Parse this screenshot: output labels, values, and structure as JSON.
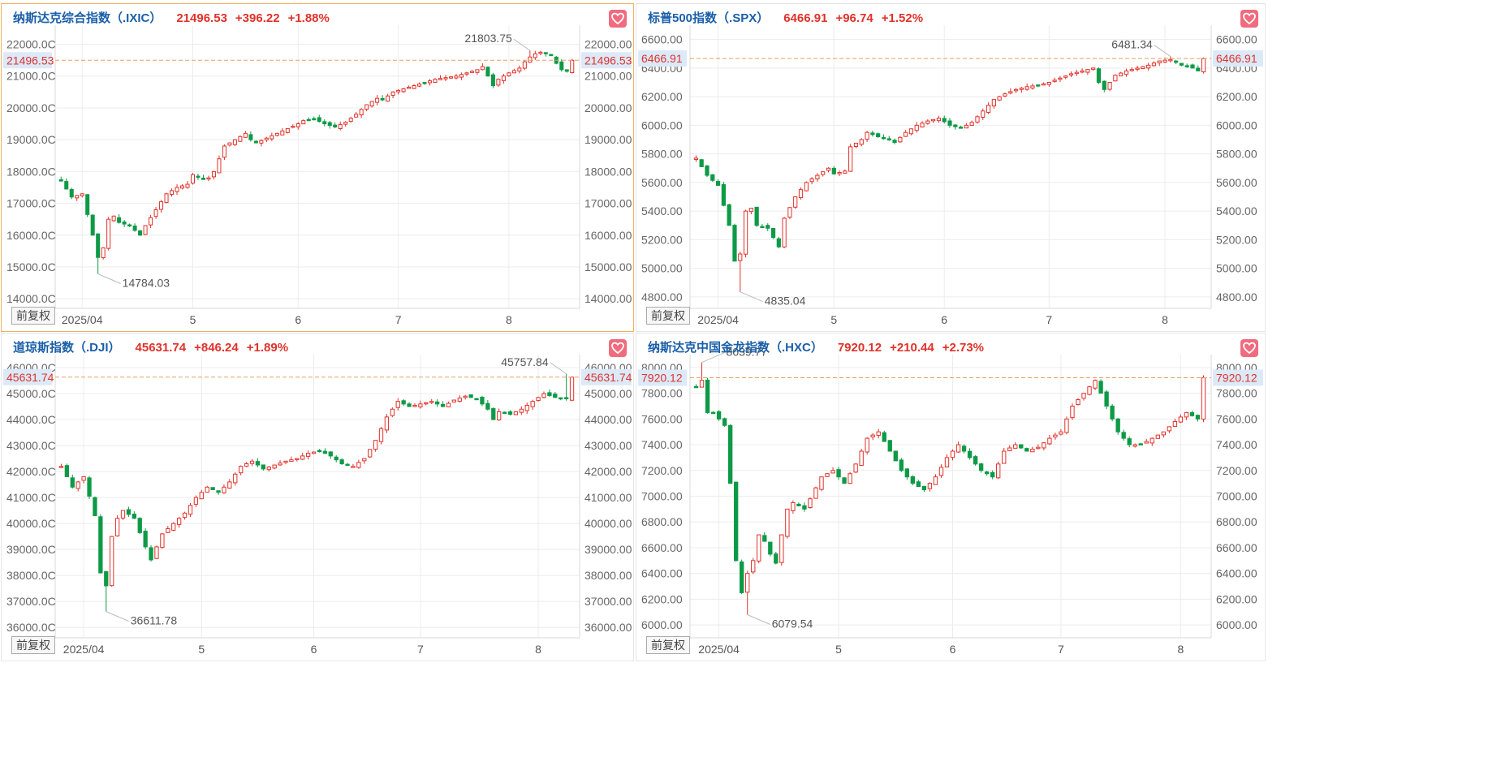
{
  "colors": {
    "up": "#e0322b",
    "down": "#0d9a46",
    "accent_border": "#f0b060",
    "price_line": "#e8a060",
    "tag_bg": "#dce9f8"
  },
  "adjust_label": "前复权",
  "chart_data": [
    {
      "type": "candlestick",
      "name": "纳斯达克综合指数（.IXIC）",
      "price": "21496.53",
      "change": "+396.22",
      "pct": "+1.88%",
      "price_value": 21496.53,
      "ylim": [
        13700,
        22600
      ],
      "yticks": [
        14000,
        15000,
        16000,
        17000,
        18000,
        19000,
        20000,
        21000,
        22000
      ],
      "yticks_left": [
        "14000.0C",
        "15000.0C",
        "16000.0C",
        "17000.0C",
        "18000.0C",
        "19000.0C",
        "20000.0C",
        "21000.0C",
        "22000.0C"
      ],
      "yticks_right": [
        "14000.00",
        "15000.00",
        "16000.00",
        "17000.00",
        "18000.00",
        "19000.00",
        "20000.00",
        "21000.00",
        "22000.00"
      ],
      "xticks": [
        {
          "label": "2025/04",
          "i": 4
        },
        {
          "label": "5",
          "i": 25
        },
        {
          "label": "6",
          "i": 45
        },
        {
          "label": "7",
          "i": 64
        },
        {
          "label": "8",
          "i": 85
        }
      ],
      "high_label": "21803.75",
      "low_label": "14784.03",
      "anchors": [
        [
          0,
          17700
        ],
        [
          2,
          17200
        ],
        [
          4,
          17300
        ],
        [
          6,
          16000
        ],
        [
          7,
          15300
        ],
        [
          8,
          15600
        ],
        [
          9,
          16500
        ],
        [
          10,
          16600
        ],
        [
          11,
          16400
        ],
        [
          13,
          16300
        ],
        [
          15,
          16000
        ],
        [
          16,
          16300
        ],
        [
          18,
          16800
        ],
        [
          20,
          17300
        ],
        [
          22,
          17500
        ],
        [
          24,
          17600
        ],
        [
          25,
          17900
        ],
        [
          27,
          17750
        ],
        [
          28,
          17800
        ],
        [
          29,
          18000
        ],
        [
          30,
          18400
        ],
        [
          31,
          18800
        ],
        [
          33,
          19000
        ],
        [
          35,
          19200
        ],
        [
          36,
          19000
        ],
        [
          37,
          18900
        ],
        [
          39,
          19050
        ],
        [
          41,
          19200
        ],
        [
          43,
          19350
        ],
        [
          45,
          19500
        ],
        [
          46,
          19600
        ],
        [
          48,
          19650
        ],
        [
          50,
          19500
        ],
        [
          52,
          19400
        ],
        [
          54,
          19550
        ],
        [
          56,
          19800
        ],
        [
          58,
          20100
        ],
        [
          60,
          20300
        ],
        [
          61,
          20250
        ],
        [
          63,
          20500
        ],
        [
          65,
          20600
        ],
        [
          67,
          20700
        ],
        [
          69,
          20800
        ],
        [
          71,
          20900
        ],
        [
          73,
          20950
        ],
        [
          75,
          21000
        ],
        [
          77,
          21100
        ],
        [
          79,
          21200
        ],
        [
          80,
          21300
        ],
        [
          81,
          21000
        ],
        [
          82,
          20700
        ],
        [
          83,
          20900
        ],
        [
          85,
          21100
        ],
        [
          87,
          21250
        ],
        [
          88,
          21450
        ],
        [
          89,
          21600
        ],
        [
          90,
          21700
        ],
        [
          91,
          21750
        ],
        [
          93,
          21650
        ],
        [
          94,
          21400
        ],
        [
          95,
          21200
        ],
        [
          96,
          21150
        ],
        [
          97,
          21496
        ]
      ],
      "low_point": [
        7,
        14784.03
      ],
      "high_point": [
        89,
        21803.75
      ]
    },
    {
      "type": "candlestick",
      "name": "标普500指数（.SPX）",
      "price": "6466.91",
      "change": "+96.74",
      "pct": "+1.52%",
      "price_value": 6466.91,
      "ylim": [
        4720,
        6700
      ],
      "yticks": [
        4800,
        5000,
        5200,
        5400,
        5600,
        5800,
        6000,
        6200,
        6400,
        6600
      ],
      "yticks_left": [
        "4800.00",
        "5000.00",
        "5200.00",
        "5400.00",
        "5600.00",
        "5800.00",
        "6000.00",
        "6200.00",
        "6400.00",
        "6600.00"
      ],
      "yticks_right": [
        "4800.00",
        "5000.00",
        "5200.00",
        "5400.00",
        "5600.00",
        "5800.00",
        "6000.00",
        "6200.00",
        "6400.00",
        "6600.00"
      ],
      "xticks": [
        {
          "label": "2025/04",
          "i": 4
        },
        {
          "label": "5",
          "i": 25
        },
        {
          "label": "6",
          "i": 45
        },
        {
          "label": "7",
          "i": 64
        },
        {
          "label": "8",
          "i": 85
        }
      ],
      "high_label": "6481.34",
      "low_label": "4835.04",
      "anchors": [
        [
          0,
          5770
        ],
        [
          2,
          5650
        ],
        [
          4,
          5580
        ],
        [
          6,
          5300
        ],
        [
          7,
          5050
        ],
        [
          8,
          5100
        ],
        [
          9,
          5400
        ],
        [
          10,
          5420
        ],
        [
          11,
          5300
        ],
        [
          13,
          5280
        ],
        [
          15,
          5150
        ],
        [
          16,
          5350
        ],
        [
          18,
          5500
        ],
        [
          20,
          5600
        ],
        [
          22,
          5650
        ],
        [
          24,
          5700
        ],
        [
          25,
          5660
        ],
        [
          27,
          5680
        ],
        [
          28,
          5850
        ],
        [
          30,
          5900
        ],
        [
          31,
          5950
        ],
        [
          33,
          5920
        ],
        [
          35,
          5900
        ],
        [
          36,
          5880
        ],
        [
          38,
          5950
        ],
        [
          40,
          6000
        ],
        [
          42,
          6030
        ],
        [
          44,
          6050
        ],
        [
          46,
          6000
        ],
        [
          48,
          5980
        ],
        [
          50,
          6020
        ],
        [
          52,
          6100
        ],
        [
          54,
          6180
        ],
        [
          56,
          6220
        ],
        [
          58,
          6250
        ],
        [
          60,
          6270
        ],
        [
          62,
          6280
        ],
        [
          64,
          6300
        ],
        [
          66,
          6330
        ],
        [
          68,
          6360
        ],
        [
          70,
          6380
        ],
        [
          72,
          6400
        ],
        [
          73,
          6300
        ],
        [
          74,
          6250
        ],
        [
          76,
          6350
        ],
        [
          78,
          6380
        ],
        [
          80,
          6400
        ],
        [
          82,
          6420
        ],
        [
          84,
          6450
        ],
        [
          86,
          6460
        ],
        [
          88,
          6420
        ],
        [
          90,
          6400
        ],
        [
          91,
          6380
        ],
        [
          92,
          6466
        ]
      ],
      "low_point": [
        8,
        4835.04
      ],
      "high_point": [
        86,
        6481.34
      ]
    },
    {
      "type": "candlestick",
      "name": "道琼斯指数（.DJI）",
      "price": "45631.74",
      "change": "+846.24",
      "pct": "+1.89%",
      "price_value": 45631.74,
      "ylim": [
        35600,
        46500
      ],
      "yticks": [
        36000,
        37000,
        38000,
        39000,
        40000,
        41000,
        42000,
        43000,
        44000,
        45000,
        46000
      ],
      "yticks_left": [
        "36000.0C",
        "37000.0C",
        "38000.0C",
        "39000.0C",
        "40000.0C",
        "41000.0C",
        "42000.0C",
        "43000.0C",
        "44000.0C",
        "45000.0C",
        "46000.0C"
      ],
      "yticks_right": [
        "36000.00",
        "37000.00",
        "38000.00",
        "39000.00",
        "40000.00",
        "41000.00",
        "42000.00",
        "43000.00",
        "44000.00",
        "45000.00",
        "46000.00"
      ],
      "xticks": [
        {
          "label": "2025/04",
          "i": 4
        },
        {
          "label": "5",
          "i": 25
        },
        {
          "label": "6",
          "i": 45
        },
        {
          "label": "7",
          "i": 64
        },
        {
          "label": "8",
          "i": 85
        }
      ],
      "high_label": "45757.84",
      "low_label": "36611.78",
      "anchors": [
        [
          0,
          42200
        ],
        [
          2,
          41400
        ],
        [
          4,
          41800
        ],
        [
          6,
          40300
        ],
        [
          7,
          38100
        ],
        [
          8,
          37600
        ],
        [
          9,
          39500
        ],
        [
          10,
          40200
        ],
        [
          11,
          40500
        ],
        [
          13,
          40200
        ],
        [
          15,
          39100
        ],
        [
          16,
          38600
        ],
        [
          18,
          39600
        ],
        [
          20,
          40000
        ],
        [
          22,
          40400
        ],
        [
          24,
          41000
        ],
        [
          26,
          41400
        ],
        [
          28,
          41200
        ],
        [
          30,
          41600
        ],
        [
          32,
          42200
        ],
        [
          34,
          42400
        ],
        [
          36,
          42100
        ],
        [
          38,
          42250
        ],
        [
          40,
          42400
        ],
        [
          42,
          42500
        ],
        [
          44,
          42700
        ],
        [
          46,
          42800
        ],
        [
          48,
          42600
        ],
        [
          50,
          42300
        ],
        [
          52,
          42200
        ],
        [
          54,
          42500
        ],
        [
          56,
          43200
        ],
        [
          58,
          44100
        ],
        [
          60,
          44700
        ],
        [
          62,
          44500
        ],
        [
          64,
          44600
        ],
        [
          66,
          44700
        ],
        [
          68,
          44500
        ],
        [
          70,
          44750
        ],
        [
          72,
          44900
        ],
        [
          74,
          44800
        ],
        [
          76,
          44400
        ],
        [
          77,
          44000
        ],
        [
          78,
          44300
        ],
        [
          80,
          44200
        ],
        [
          82,
          44400
        ],
        [
          84,
          44700
        ],
        [
          86,
          45000
        ],
        [
          88,
          44850
        ],
        [
          90,
          44800
        ],
        [
          91,
          45631
        ]
      ],
      "low_point": [
        8,
        36611.78
      ],
      "high_point": [
        90,
        45757.84
      ]
    },
    {
      "type": "candlestick",
      "name": "纳斯达克中国金龙指数（.HXC）",
      "price": "7920.12",
      "change": "+210.44",
      "pct": "+2.73%",
      "price_value": 7920.12,
      "ylim": [
        5900,
        8100
      ],
      "yticks": [
        6000,
        6200,
        6400,
        6600,
        6800,
        7000,
        7200,
        7400,
        7600,
        7800,
        8000
      ],
      "yticks_left": [
        "6000.00",
        "6200.00",
        "6400.00",
        "6600.00",
        "6800.00",
        "7000.00",
        "7200.00",
        "7400.00",
        "7600.00",
        "7800.00",
        "8000.00"
      ],
      "yticks_right": [
        "6000.00",
        "6200.00",
        "6400.00",
        "6600.00",
        "6800.00",
        "7000.00",
        "7200.00",
        "7400.00",
        "7600.00",
        "7800.00",
        "8000.00"
      ],
      "xticks": [
        {
          "label": "2025/04",
          "i": 4
        },
        {
          "label": "5",
          "i": 25
        },
        {
          "label": "6",
          "i": 45
        },
        {
          "label": "7",
          "i": 64
        },
        {
          "label": "8",
          "i": 85
        }
      ],
      "high_label": "8039.77",
      "low_label": "6079.54",
      "anchors": [
        [
          0,
          7850
        ],
        [
          1,
          7900
        ],
        [
          2,
          7650
        ],
        [
          3,
          7650
        ],
        [
          4,
          7600
        ],
        [
          5,
          7550
        ],
        [
          6,
          7100
        ],
        [
          7,
          6500
        ],
        [
          8,
          6250
        ],
        [
          9,
          6400
        ],
        [
          10,
          6500
        ],
        [
          11,
          6700
        ],
        [
          12,
          6650
        ],
        [
          13,
          6550
        ],
        [
          14,
          6480
        ],
        [
          15,
          6700
        ],
        [
          16,
          6900
        ],
        [
          17,
          6950
        ],
        [
          19,
          6900
        ],
        [
          20,
          6980
        ],
        [
          22,
          7150
        ],
        [
          24,
          7200
        ],
        [
          26,
          7100
        ],
        [
          28,
          7250
        ],
        [
          30,
          7450
        ],
        [
          32,
          7500
        ],
        [
          34,
          7350
        ],
        [
          36,
          7200
        ],
        [
          38,
          7100
        ],
        [
          40,
          7050
        ],
        [
          42,
          7150
        ],
        [
          44,
          7300
        ],
        [
          46,
          7400
        ],
        [
          48,
          7300
        ],
        [
          50,
          7200
        ],
        [
          52,
          7150
        ],
        [
          54,
          7350
        ],
        [
          56,
          7400
        ],
        [
          58,
          7350
        ],
        [
          60,
          7380
        ],
        [
          62,
          7450
        ],
        [
          64,
          7500
        ],
        [
          66,
          7700
        ],
        [
          68,
          7800
        ],
        [
          70,
          7900
        ],
        [
          72,
          7700
        ],
        [
          74,
          7500
        ],
        [
          76,
          7400
        ],
        [
          78,
          7400
        ],
        [
          80,
          7450
        ],
        [
          82,
          7500
        ],
        [
          84,
          7580
        ],
        [
          86,
          7650
        ],
        [
          88,
          7600
        ],
        [
          89,
          7920
        ]
      ],
      "low_point": [
        9,
        6079.54
      ],
      "high_point": [
        1,
        8039.77
      ]
    }
  ]
}
